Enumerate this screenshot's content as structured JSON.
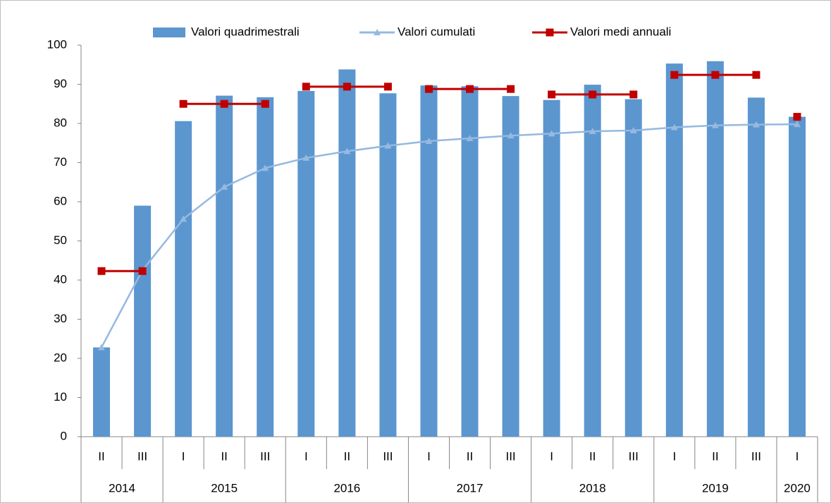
{
  "chart_data": {
    "type": "bar",
    "groups": [
      {
        "name": "2014",
        "categories": [
          "II",
          "III"
        ]
      },
      {
        "name": "2015",
        "categories": [
          "I",
          "II",
          "III"
        ]
      },
      {
        "name": "2016",
        "categories": [
          "I",
          "II",
          "III"
        ]
      },
      {
        "name": "2017",
        "categories": [
          "I",
          "II",
          "III"
        ]
      },
      {
        "name": "2018",
        "categories": [
          "I",
          "II",
          "III"
        ]
      },
      {
        "name": "2019",
        "categories": [
          "I",
          "II",
          "III"
        ]
      },
      {
        "name": "2020",
        "categories": [
          "I"
        ]
      }
    ],
    "series": [
      {
        "name": "Valori quadrimestrali",
        "type": "bar",
        "color": "#5b96cf",
        "values": [
          22.8,
          59,
          80.6,
          87.1,
          86.7,
          88.3,
          93.8,
          87.7,
          89.7,
          89.5,
          87,
          86,
          89.9,
          86.2,
          95.3,
          95.9,
          86.6,
          81.7
        ]
      },
      {
        "name": "Valori cumulati",
        "type": "line",
        "marker": "triangle",
        "color": "#95b9e0",
        "values": [
          22.8,
          42.5,
          55.6,
          63.8,
          68.6,
          71.2,
          72.9,
          74.3,
          75.5,
          76.2,
          76.9,
          77.4,
          78,
          78.2,
          79,
          79.5,
          79.7,
          79.8
        ]
      },
      {
        "name": "Valori medi annuali",
        "type": "line",
        "marker": "square",
        "color": "#c00000",
        "break_by_group": true,
        "values": [
          42.3,
          42.3,
          85,
          85,
          85,
          89.4,
          89.4,
          89.4,
          88.8,
          88.8,
          88.8,
          87.4,
          87.4,
          87.4,
          92.4,
          92.4,
          92.4,
          81.7
        ]
      }
    ],
    "ylim": [
      0,
      100
    ],
    "yticks": [
      0,
      10,
      20,
      30,
      40,
      50,
      60,
      70,
      80,
      90,
      100
    ],
    "grid": false
  }
}
